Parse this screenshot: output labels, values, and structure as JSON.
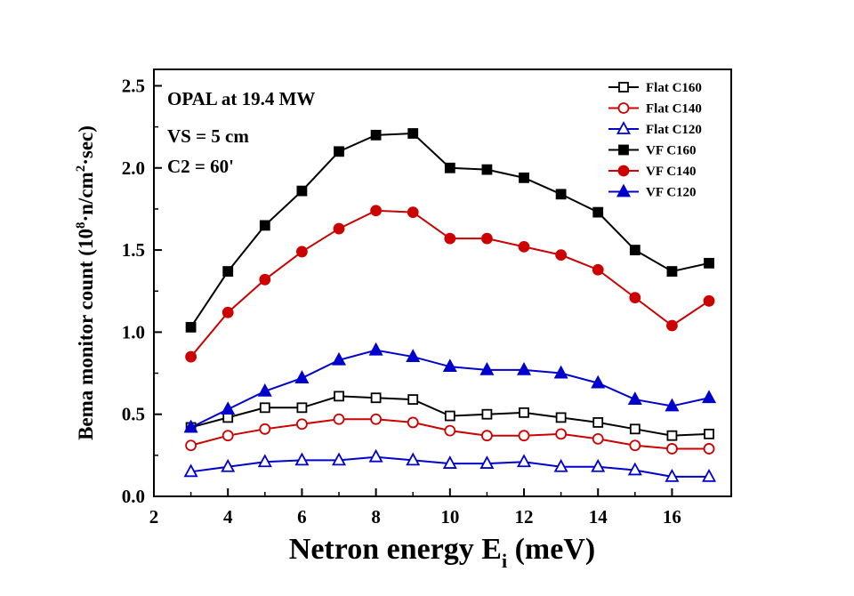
{
  "chart_data": {
    "type": "line",
    "title": "",
    "xlabel_main": "Netron energy E",
    "xlabel_sub": "i",
    "xlabel_unit": " (meV)",
    "ylabel_parts": [
      "Bema monitor count (10",
      "8",
      "·n/cm",
      "2",
      "·sec)"
    ],
    "xlim": [
      2,
      17.6
    ],
    "ylim": [
      0,
      2.6
    ],
    "x_ticks": [
      2,
      4,
      6,
      8,
      10,
      12,
      14,
      16
    ],
    "x_tick_labels": [
      "2",
      "4",
      "6",
      "8",
      "10",
      "12",
      "14",
      "16"
    ],
    "y_ticks": [
      0.0,
      0.5,
      1.0,
      1.5,
      2.0,
      2.5
    ],
    "y_tick_labels": [
      "0.0",
      "0.5",
      "1.0",
      "1.5",
      "2.0",
      "2.5"
    ],
    "x": [
      3,
      4,
      5,
      6,
      7,
      8,
      9,
      10,
      11,
      12,
      13,
      14,
      15,
      16,
      17
    ],
    "annotations": [
      "OPAL at 19.4 MW",
      "VS = 5 cm",
      "C2 = 60'"
    ],
    "legend_position": "top-right",
    "series": [
      {
        "name": "Flat C160",
        "color": "#000000",
        "marker": "square",
        "filled": false,
        "values": [
          0.42,
          0.48,
          0.54,
          0.54,
          0.61,
          0.6,
          0.59,
          0.49,
          0.5,
          0.51,
          0.48,
          0.45,
          0.41,
          0.37,
          0.38
        ]
      },
      {
        "name": "Flat C140",
        "color": "#cc0000",
        "marker": "circle",
        "filled": false,
        "values": [
          0.31,
          0.37,
          0.41,
          0.44,
          0.47,
          0.47,
          0.45,
          0.4,
          0.37,
          0.37,
          0.38,
          0.35,
          0.31,
          0.29,
          0.29
        ]
      },
      {
        "name": "Flat C120",
        "color": "#0000cc",
        "marker": "triangle",
        "filled": false,
        "values": [
          0.15,
          0.18,
          0.21,
          0.22,
          0.22,
          0.24,
          0.22,
          0.2,
          0.2,
          0.21,
          0.18,
          0.18,
          0.16,
          0.12,
          0.12
        ]
      },
      {
        "name": "VF C160",
        "color": "#000000",
        "marker": "square",
        "filled": true,
        "values": [
          1.03,
          1.37,
          1.65,
          1.86,
          2.1,
          2.2,
          2.21,
          2.0,
          1.99,
          1.94,
          1.84,
          1.73,
          1.5,
          1.37,
          1.42
        ]
      },
      {
        "name": "VF C140",
        "color": "#cc0000",
        "marker": "circle",
        "filled": true,
        "values": [
          0.85,
          1.12,
          1.32,
          1.49,
          1.63,
          1.74,
          1.73,
          1.57,
          1.57,
          1.52,
          1.47,
          1.38,
          1.21,
          1.04,
          1.19
        ]
      },
      {
        "name": "VF C120",
        "color": "#0000cc",
        "marker": "triangle",
        "filled": true,
        "values": [
          0.42,
          0.53,
          0.64,
          0.72,
          0.83,
          0.89,
          0.85,
          0.79,
          0.77,
          0.77,
          0.75,
          0.69,
          0.59,
          0.55,
          0.6
        ]
      }
    ]
  }
}
